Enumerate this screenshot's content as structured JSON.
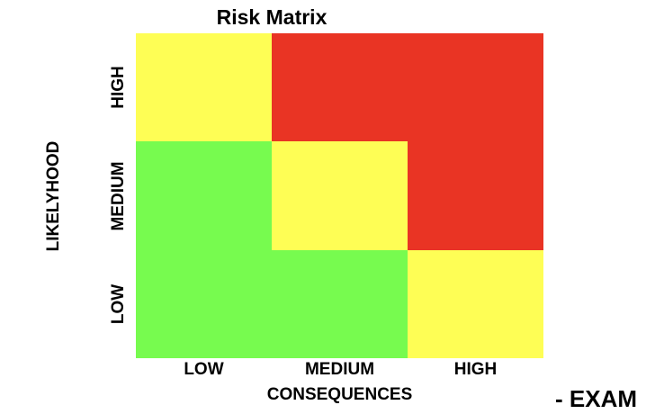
{
  "title": "Risk Matrix",
  "x_axis": {
    "title": "CONSEQUENCES",
    "labels": [
      "LOW",
      "MEDIUM",
      "HIGH"
    ]
  },
  "y_axis": {
    "title": "LIKELYHOOD",
    "labels_top_to_bottom": [
      "HIGH",
      "MEDIUM",
      "LOW"
    ]
  },
  "colors": {
    "green": "#77fb4f",
    "yellow": "#fefe55",
    "red": "#e93424"
  },
  "matrix": [
    [
      "yellow",
      "red",
      "red"
    ],
    [
      "green",
      "yellow",
      "red"
    ],
    [
      "green",
      "green",
      "yellow"
    ]
  ],
  "footer_text": "- EXAM"
}
